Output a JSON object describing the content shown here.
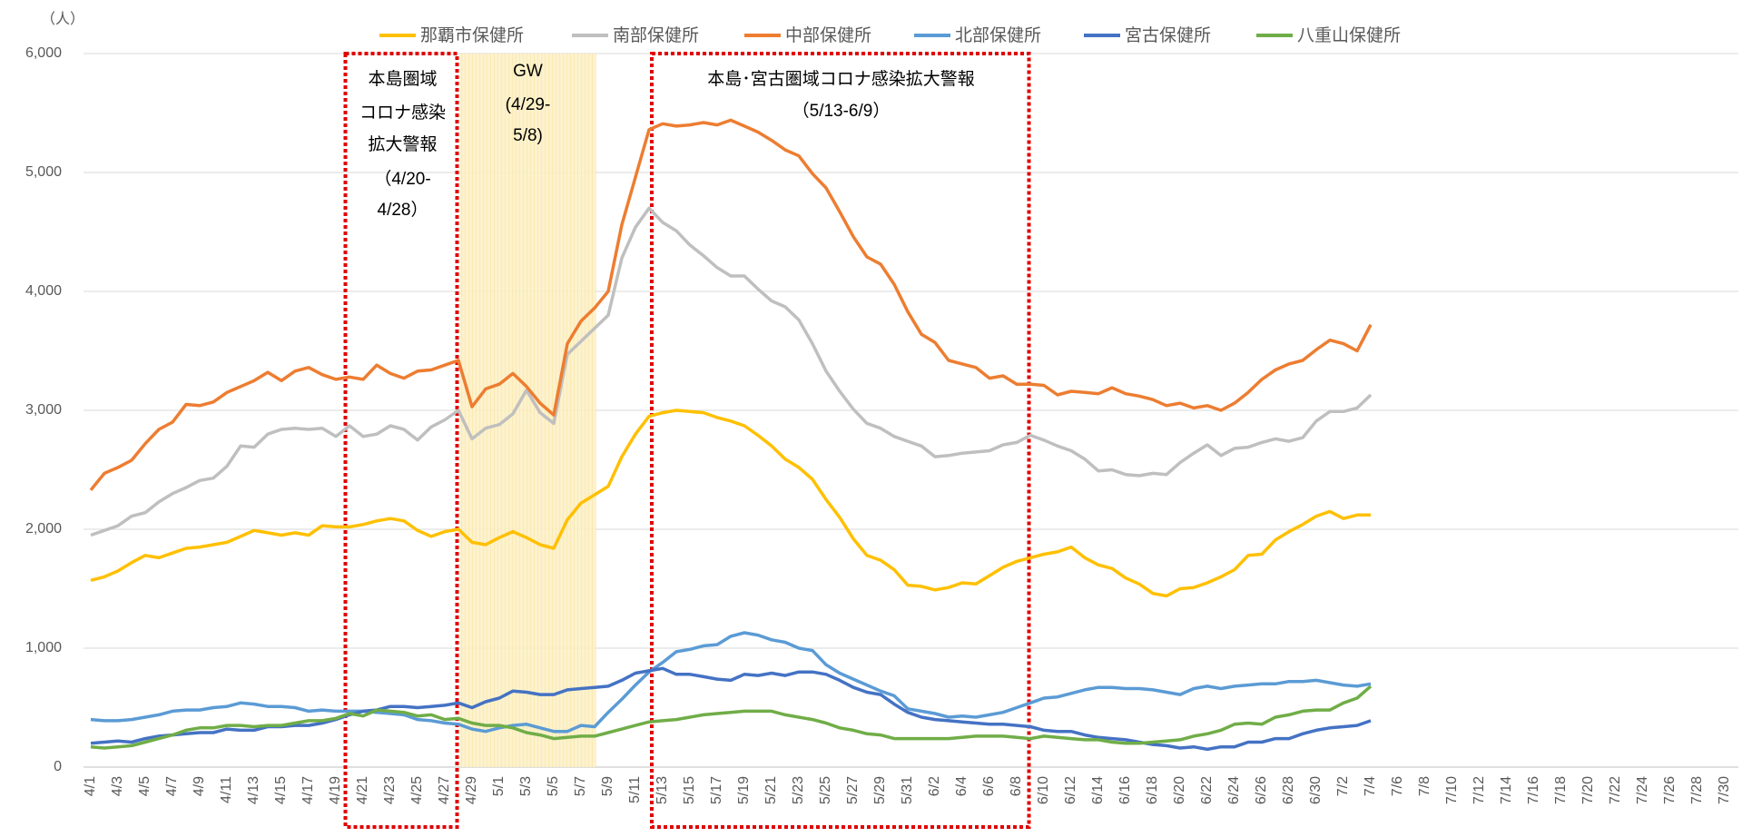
{
  "chart_data": {
    "type": "line",
    "y_unit": "（人）",
    "categories": [
      "4/1",
      null,
      "4/3",
      null,
      "4/5",
      null,
      "4/7",
      null,
      "4/9",
      null,
      "4/11",
      null,
      "4/13",
      null,
      "4/15",
      null,
      "4/17",
      null,
      "4/19",
      null,
      "4/21",
      null,
      "4/23",
      null,
      "4/25",
      null,
      "4/27",
      null,
      "4/29",
      null,
      "5/1",
      null,
      "5/3",
      null,
      "5/5",
      null,
      "5/7",
      null,
      "5/9",
      null,
      "5/11",
      null,
      "5/13",
      null,
      "5/15",
      null,
      "5/17",
      null,
      "5/19",
      null,
      "5/21",
      null,
      "5/23",
      null,
      "5/25",
      null,
      "5/27",
      null,
      "5/29",
      null,
      "5/31",
      null,
      "6/2",
      null,
      "6/4",
      null,
      "6/6",
      null,
      "6/8",
      null,
      "6/10",
      null,
      "6/12",
      null,
      "6/14",
      null,
      "6/16",
      null,
      "6/18",
      null,
      "6/20",
      null,
      "6/22",
      null,
      "6/24",
      null,
      "6/26",
      null,
      "6/28",
      null,
      "6/30",
      null,
      "7/2",
      null,
      "7/4",
      null,
      "7/6",
      null,
      "7/8",
      null,
      "7/10",
      null,
      "7/12",
      null,
      "7/14",
      null,
      "7/16",
      null,
      "7/18",
      null,
      "7/20",
      null,
      "7/22",
      null,
      "7/24",
      null,
      "7/26",
      null,
      "7/28",
      null,
      "7/30",
      null
    ],
    "series": [
      {
        "name": "那覇市保健所",
        "color": "#ffc000",
        "values": [
          1570,
          1600,
          1650,
          1720,
          1780,
          1760,
          1800,
          1840,
          1850,
          1870,
          1890,
          1940,
          1990,
          1970,
          1950,
          1970,
          1950,
          2030,
          2020,
          2020,
          2040,
          2070,
          2090,
          2070,
          1990,
          1940,
          1980,
          2000,
          1890,
          1870,
          1930,
          1980,
          1930,
          1870,
          1840,
          2080,
          2220,
          2290,
          2360,
          2610,
          2800,
          2950,
          2980,
          3000,
          2990,
          2980,
          2940,
          2910,
          2870,
          2790,
          2700,
          2590,
          2520,
          2420,
          2250,
          2100,
          1920,
          1780,
          1740,
          1660,
          1530,
          1520,
          1490,
          1510,
          1550,
          1540,
          1610,
          1680,
          1730,
          1760,
          1790,
          1810,
          1850,
          1760,
          1700,
          1670,
          1590,
          1540,
          1460,
          1440,
          1500,
          1510,
          1550,
          1600,
          1660,
          1780,
          1790,
          1910,
          1980,
          2040,
          2110,
          2150,
          2090,
          2120,
          2120,
          null,
          null,
          null,
          null,
          null,
          null,
          null,
          null,
          null,
          null,
          null,
          null,
          null,
          null,
          null,
          null,
          null,
          null,
          null,
          null,
          null,
          null,
          null,
          null,
          null,
          null,
          null
        ]
      },
      {
        "name": "南部保健所",
        "color": "#bfbfbf",
        "values": [
          1950,
          1990,
          2030,
          2110,
          2140,
          2230,
          2300,
          2350,
          2410,
          2430,
          2530,
          2700,
          2690,
          2800,
          2840,
          2850,
          2840,
          2850,
          2780,
          2870,
          2780,
          2800,
          2870,
          2840,
          2750,
          2860,
          2920,
          3000,
          2760,
          2850,
          2880,
          2970,
          3170,
          2980,
          2890,
          3470,
          3580,
          3690,
          3800,
          4280,
          4540,
          4700,
          4580,
          4510,
          4390,
          4300,
          4200,
          4130,
          4130,
          4020,
          3920,
          3870,
          3760,
          3560,
          3330,
          3160,
          3010,
          2890,
          2850,
          2780,
          2740,
          2700,
          2610,
          2620,
          2640,
          2650,
          2660,
          2710,
          2730,
          2790,
          2750,
          2700,
          2660,
          2590,
          2490,
          2500,
          2460,
          2450,
          2470,
          2460,
          2560,
          2640,
          2710,
          2620,
          2680,
          2690,
          2730,
          2760,
          2740,
          2770,
          2910,
          2990,
          2990,
          3020,
          3130,
          null,
          null,
          null,
          null,
          null,
          null,
          null,
          null,
          null,
          null,
          null,
          null,
          null,
          null,
          null,
          null,
          null,
          null,
          null,
          null,
          null,
          null,
          null,
          null,
          null,
          null,
          null
        ]
      },
      {
        "name": "中部保健所",
        "color": "#ed7d31",
        "values": [
          2330,
          2470,
          2520,
          2580,
          2720,
          2840,
          2900,
          3050,
          3040,
          3070,
          3150,
          3200,
          3250,
          3320,
          3250,
          3330,
          3360,
          3300,
          3260,
          3280,
          3260,
          3380,
          3310,
          3270,
          3330,
          3340,
          3380,
          3420,
          3030,
          3180,
          3220,
          3310,
          3200,
          3060,
          2960,
          3560,
          3750,
          3860,
          4000,
          4560,
          4960,
          5360,
          5410,
          5390,
          5400,
          5420,
          5400,
          5440,
          5390,
          5340,
          5270,
          5190,
          5140,
          4990,
          4870,
          4670,
          4460,
          4290,
          4230,
          4060,
          3830,
          3640,
          3570,
          3420,
          3390,
          3360,
          3270,
          3290,
          3220,
          3220,
          3210,
          3130,
          3160,
          3150,
          3140,
          3190,
          3140,
          3120,
          3090,
          3040,
          3060,
          3020,
          3040,
          3000,
          3060,
          3150,
          3260,
          3340,
          3390,
          3420,
          3510,
          3590,
          3560,
          3500,
          3720,
          null,
          null,
          null,
          null,
          null,
          null,
          null,
          null,
          null,
          null,
          null,
          null,
          null,
          null,
          null,
          null,
          null,
          null,
          null,
          null,
          null,
          null,
          null,
          null,
          null,
          null,
          null
        ]
      },
      {
        "name": "北部保健所",
        "color": "#5b9bd5",
        "values": [
          400,
          390,
          390,
          400,
          420,
          440,
          470,
          480,
          480,
          500,
          510,
          540,
          530,
          510,
          510,
          500,
          470,
          480,
          470,
          470,
          470,
          460,
          450,
          440,
          400,
          390,
          370,
          360,
          320,
          300,
          330,
          350,
          360,
          330,
          300,
          300,
          350,
          340,
          460,
          570,
          690,
          800,
          880,
          970,
          990,
          1020,
          1030,
          1100,
          1130,
          1110,
          1070,
          1050,
          1000,
          980,
          860,
          790,
          740,
          690,
          640,
          600,
          490,
          470,
          450,
          420,
          430,
          420,
          440,
          460,
          500,
          540,
          580,
          590,
          620,
          650,
          670,
          670,
          660,
          660,
          650,
          630,
          610,
          660,
          680,
          660,
          680,
          690,
          700,
          700,
          720,
          720,
          730,
          710,
          690,
          680,
          700,
          null,
          null,
          null,
          null,
          null,
          null,
          null,
          null,
          null,
          null,
          null,
          null,
          null,
          null,
          null,
          null,
          null,
          null,
          null,
          null,
          null,
          null,
          null,
          null,
          null,
          null,
          null
        ]
      },
      {
        "name": "宮古保健所",
        "color": "#4472c4",
        "values": [
          200,
          210,
          220,
          210,
          240,
          260,
          270,
          280,
          290,
          290,
          320,
          310,
          310,
          340,
          340,
          350,
          350,
          370,
          400,
          440,
          470,
          480,
          510,
          510,
          500,
          510,
          520,
          540,
          500,
          550,
          580,
          640,
          630,
          610,
          610,
          650,
          660,
          670,
          680,
          730,
          790,
          810,
          830,
          780,
          780,
          760,
          740,
          730,
          780,
          770,
          790,
          770,
          800,
          800,
          780,
          730,
          670,
          630,
          610,
          530,
          460,
          420,
          400,
          390,
          380,
          370,
          360,
          360,
          350,
          340,
          310,
          300,
          300,
          270,
          250,
          240,
          230,
          210,
          190,
          180,
          160,
          170,
          150,
          170,
          170,
          210,
          210,
          240,
          240,
          280,
          310,
          330,
          340,
          350,
          390,
          null,
          null,
          null,
          null,
          null,
          null,
          null,
          null,
          null,
          null,
          null,
          null,
          null,
          null,
          null,
          null,
          null,
          null,
          null,
          null,
          null,
          null,
          null,
          null,
          null,
          null,
          null
        ]
      },
      {
        "name": "八重山保健所",
        "color": "#70ad47",
        "values": [
          170,
          160,
          170,
          180,
          210,
          240,
          270,
          310,
          330,
          330,
          350,
          350,
          340,
          350,
          350,
          370,
          390,
          390,
          410,
          450,
          430,
          480,
          470,
          460,
          430,
          440,
          400,
          410,
          370,
          350,
          350,
          330,
          290,
          270,
          240,
          250,
          260,
          260,
          290,
          320,
          350,
          380,
          390,
          400,
          420,
          440,
          450,
          460,
          470,
          470,
          470,
          440,
          420,
          400,
          370,
          330,
          310,
          280,
          270,
          240,
          240,
          240,
          240,
          240,
          250,
          260,
          260,
          260,
          250,
          240,
          260,
          250,
          240,
          230,
          230,
          210,
          200,
          200,
          210,
          220,
          230,
          260,
          280,
          310,
          360,
          370,
          360,
          420,
          440,
          470,
          480,
          480,
          540,
          580,
          680,
          null,
          null,
          null,
          null,
          null,
          null,
          null,
          null,
          null,
          null,
          null,
          null,
          null,
          null,
          null,
          null,
          null,
          null,
          null,
          null,
          null,
          null,
          null,
          null,
          null,
          null,
          null
        ]
      }
    ],
    "ylim": [
      0,
      6000
    ],
    "yticks": [
      0,
      {
        "value": 1000,
        "label": "1,000"
      },
      {
        "value": 2000,
        "label": "2,000"
      },
      {
        "value": 3000,
        "label": "3,000"
      },
      {
        "value": 4000,
        "label": "4,000"
      },
      {
        "value": 5000,
        "label": "5,000"
      },
      {
        "value": 6000,
        "label": "6,000"
      }
    ],
    "grid": true,
    "legend": "top",
    "annotations": [
      {
        "lines": [
          "本島圏域",
          "コロナ感染",
          "拡大警報",
          "（4/20-",
          "4/28）"
        ]
      },
      {
        "lines": [
          "GW",
          "(4/29-",
          "5/8)"
        ]
      },
      {
        "lines": [
          "本島･宮古圏域コロナ感染拡大警報",
          "（5/13-6/9）"
        ]
      }
    ]
  }
}
